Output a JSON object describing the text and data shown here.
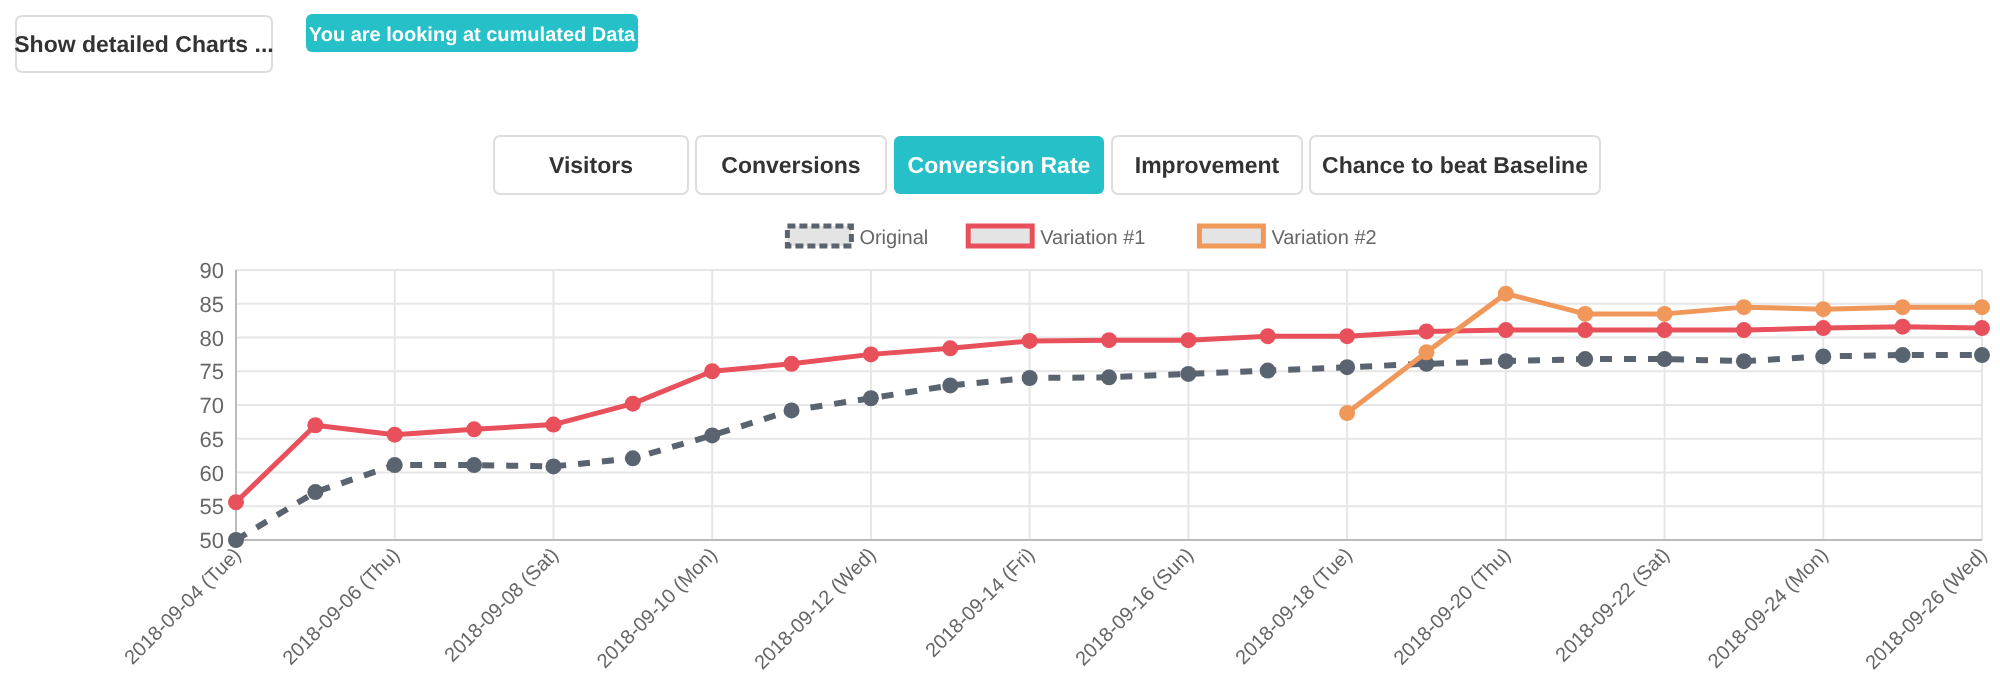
{
  "chart_data": {
    "type": "line",
    "annotations": [
      "Show detailed Charts ...",
      "You are looking at cumulated Data",
      "Visitors",
      "Conversions",
      "Conversion Rate",
      "Improvement",
      "Chance to beat Baseline"
    ],
    "categories": [
      "2018-09-04 (Tue)",
      null,
      "2018-09-06 (Thu)",
      null,
      "2018-09-08 (Sat)",
      null,
      "2018-09-10 (Mon)",
      null,
      "2018-09-12 (Wed)",
      null,
      "2018-09-14 (Fri)",
      null,
      "2018-09-16 (Sun)",
      null,
      "2018-09-18 (Tue)",
      null,
      "2018-09-20 (Thu)",
      null,
      "2018-09-22 (Sat)",
      null,
      "2018-09-24 (Mon)",
      null,
      "2018-09-26 (Wed)"
    ],
    "series": [
      {
        "name": "Original",
        "color": "#5a6470",
        "line_style": "dashed",
        "values": [
          50,
          57.1,
          61.1,
          61.1,
          60.9,
          62.1,
          65.5,
          69.2,
          71,
          72.9,
          74,
          74.1,
          74.6,
          75.1,
          75.6,
          76.1,
          76.5,
          76.8,
          76.8,
          76.5,
          77.2,
          77.4,
          77.4
        ]
      },
      {
        "name": "Variation #1",
        "color": "#e8505b",
        "line_style": "solid",
        "values": [
          55.6,
          67,
          65.6,
          66.4,
          67.1,
          70.2,
          75,
          76.1,
          77.5,
          78.4,
          79.5,
          79.6,
          79.6,
          80.2,
          80.2,
          80.9,
          81.1,
          81.1,
          81.1,
          81.1,
          81.4,
          81.6,
          81.4
        ]
      },
      {
        "name": "Variation #2",
        "color": "#f0975a",
        "line_style": "solid",
        "values": [
          null,
          null,
          null,
          null,
          null,
          null,
          null,
          null,
          null,
          null,
          null,
          null,
          null,
          null,
          68.8,
          77.8,
          86.5,
          83.5,
          83.5,
          84.5,
          84.2,
          84.5,
          84.5
        ]
      }
    ],
    "ylim": [
      50,
      90
    ],
    "yticks": [
      50,
      55,
      60,
      65,
      70,
      75,
      80,
      85,
      90
    ],
    "grid": true,
    "legend": "top",
    "marker": "circle"
  }
}
